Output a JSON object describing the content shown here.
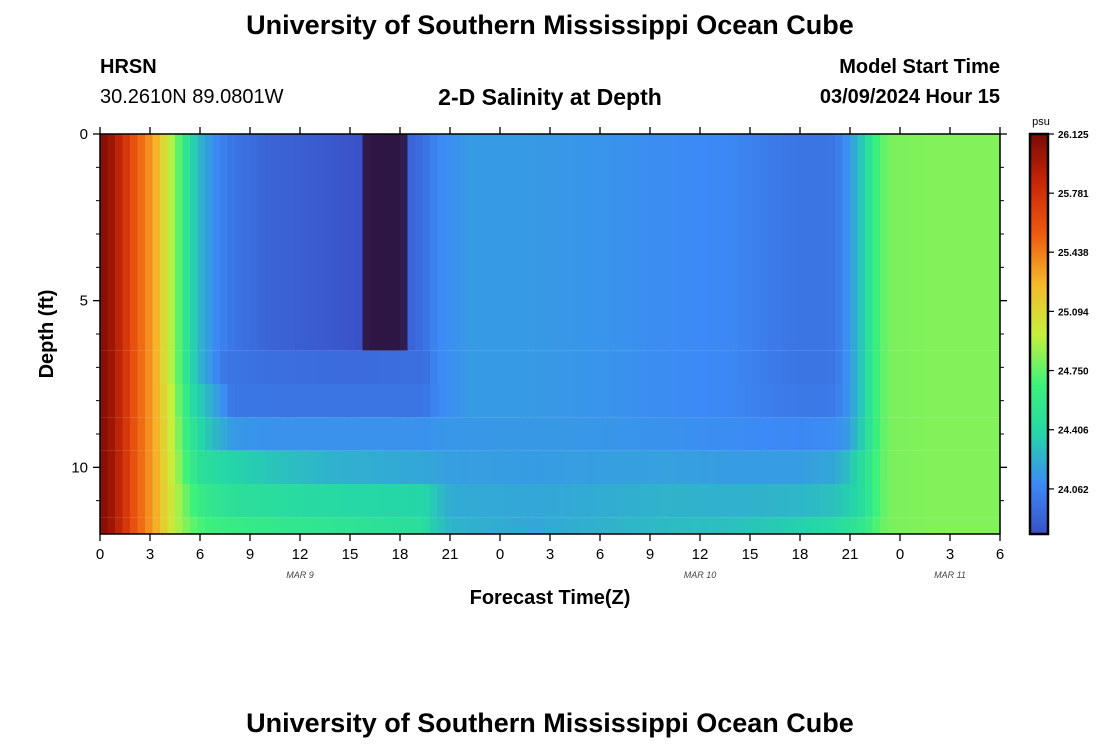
{
  "header": {
    "title": "University of Southern Mississippi Ocean Cube",
    "station": "HRSN",
    "coordinates": "30.2610N  89.0801W",
    "chart_title": "2-D Salinity at Depth",
    "model_start_label": "Model Start Time",
    "model_start_value": "03/09/2024 Hour 15"
  },
  "footer": {
    "title": "University of Southern Mississippi Ocean Cube"
  },
  "chart_data": {
    "type": "heatmap",
    "title": "2-D Salinity at Depth",
    "xlabel": "Forecast Time(Z)",
    "ylabel": "Depth (ft)",
    "x_hours_range": [
      0,
      54
    ],
    "x_tick_labels": [
      "0",
      "3",
      "6",
      "9",
      "12",
      "15",
      "18",
      "21",
      "0",
      "3",
      "6",
      "9",
      "12",
      "15",
      "18",
      "21",
      "0",
      "3",
      "6"
    ],
    "date_labels": [
      {
        "text": "MAR 9",
        "hour": 12
      },
      {
        "text": "MAR 10",
        "hour": 36
      },
      {
        "text": "MAR 11",
        "hour": 51
      }
    ],
    "y_range": [
      0,
      12
    ],
    "y_ticks": [
      0,
      5,
      10
    ],
    "y_minor_ticks": [
      1,
      2,
      3,
      4,
      6,
      7,
      8,
      9,
      11
    ],
    "colorbar": {
      "unit": "psu",
      "min": 23.8,
      "max": 26.125,
      "tick_values": [
        "26.125",
        "25.781",
        "25.438",
        "25.094",
        "24.750",
        "24.406",
        "24.062"
      ],
      "colors": [
        "#3a52c8",
        "#3c8af5",
        "#24d6a8",
        "#3ef27a",
        "#c6f03a",
        "#f5b92a",
        "#ee5a10",
        "#c82808",
        "#7a0a03"
      ]
    },
    "layers": [
      {
        "depth": [
          0,
          6.5
        ],
        "profile": [
          [
            0,
            26.1
          ],
          [
            0.5,
            26.05
          ],
          [
            1.2,
            25.85
          ],
          [
            2,
            25.6
          ],
          [
            3.3,
            25.3
          ],
          [
            4.2,
            24.95
          ],
          [
            4.8,
            24.7
          ],
          [
            5.3,
            24.45
          ],
          [
            6,
            24.25
          ],
          [
            7,
            24.08
          ],
          [
            8,
            23.98
          ],
          [
            10,
            23.9
          ],
          [
            13,
            23.85
          ],
          [
            15.6,
            23.8
          ],
          [
            16,
            23.2
          ],
          [
            18.2,
            23.2
          ],
          [
            18.5,
            23.88
          ],
          [
            19.4,
            23.95
          ],
          [
            20.2,
            24.08
          ],
          [
            22,
            24.15
          ],
          [
            26,
            24.15
          ],
          [
            30,
            24.13
          ],
          [
            34,
            24.1
          ],
          [
            38,
            24.08
          ],
          [
            40,
            24.02
          ],
          [
            42,
            23.98
          ],
          [
            43.8,
            23.98
          ],
          [
            44.5,
            24.05
          ],
          [
            45.2,
            24.2
          ],
          [
            45.8,
            24.35
          ],
          [
            46.3,
            24.55
          ],
          [
            46.8,
            24.72
          ],
          [
            47.5,
            24.8
          ],
          [
            50,
            24.82
          ],
          [
            54,
            24.82
          ]
        ]
      },
      {
        "depth": [
          6.5,
          7.5
        ],
        "profile": [
          [
            0,
            26.1
          ],
          [
            0.5,
            26.05
          ],
          [
            1.2,
            25.85
          ],
          [
            2,
            25.6
          ],
          [
            3.3,
            25.3
          ],
          [
            4.2,
            24.95
          ],
          [
            4.8,
            24.7
          ],
          [
            5.3,
            24.45
          ],
          [
            6,
            24.25
          ],
          [
            6.8,
            24.1
          ],
          [
            7.5,
            23.99
          ],
          [
            10,
            23.95
          ],
          [
            15,
            23.93
          ],
          [
            19.5,
            23.95
          ],
          [
            20.2,
            24.08
          ],
          [
            22,
            24.15
          ],
          [
            26,
            24.15
          ],
          [
            30,
            24.13
          ],
          [
            34,
            24.1
          ],
          [
            38,
            24.08
          ],
          [
            40,
            24.02
          ],
          [
            42,
            23.98
          ],
          [
            43.8,
            23.98
          ],
          [
            44.5,
            24.05
          ],
          [
            45.2,
            24.2
          ],
          [
            45.8,
            24.35
          ],
          [
            46.3,
            24.55
          ],
          [
            46.8,
            24.72
          ],
          [
            47.5,
            24.8
          ],
          [
            50,
            24.82
          ],
          [
            54,
            24.82
          ]
        ]
      },
      {
        "depth": [
          7.5,
          8.5
        ],
        "profile": [
          [
            0,
            26.1
          ],
          [
            0.5,
            26.05
          ],
          [
            1.2,
            25.85
          ],
          [
            2,
            25.6
          ],
          [
            3.3,
            25.3
          ],
          [
            4.3,
            24.95
          ],
          [
            5,
            24.65
          ],
          [
            5.6,
            24.42
          ],
          [
            6.5,
            24.25
          ],
          [
            7.3,
            24.12
          ],
          [
            8,
            23.99
          ],
          [
            12,
            23.98
          ],
          [
            19.5,
            23.98
          ],
          [
            20.2,
            24.08
          ],
          [
            22,
            24.15
          ],
          [
            26,
            24.15
          ],
          [
            30,
            24.13
          ],
          [
            34,
            24.1
          ],
          [
            38,
            24.08
          ],
          [
            40,
            24.03
          ],
          [
            42,
            24.0
          ],
          [
            43.8,
            24.0
          ],
          [
            44.5,
            24.06
          ],
          [
            45.2,
            24.2
          ],
          [
            45.8,
            24.35
          ],
          [
            46.3,
            24.55
          ],
          [
            46.8,
            24.72
          ],
          [
            47.5,
            24.8
          ],
          [
            50,
            24.82
          ],
          [
            54,
            24.82
          ]
        ]
      },
      {
        "depth": [
          8.5,
          9.5
        ],
        "profile": [
          [
            0,
            26.1
          ],
          [
            0.5,
            26.05
          ],
          [
            1.2,
            25.85
          ],
          [
            2,
            25.6
          ],
          [
            3.3,
            25.3
          ],
          [
            4.5,
            24.9
          ],
          [
            5.2,
            24.6
          ],
          [
            6,
            24.4
          ],
          [
            7,
            24.25
          ],
          [
            8,
            24.15
          ],
          [
            10,
            24.12
          ],
          [
            14,
            24.12
          ],
          [
            19.5,
            24.12
          ],
          [
            21,
            24.14
          ],
          [
            26,
            24.15
          ],
          [
            30,
            24.14
          ],
          [
            34,
            24.12
          ],
          [
            38,
            24.1
          ],
          [
            42,
            24.08
          ],
          [
            44,
            24.1
          ],
          [
            44.8,
            24.15
          ],
          [
            45.3,
            24.25
          ],
          [
            45.8,
            24.38
          ],
          [
            46.3,
            24.55
          ],
          [
            46.8,
            24.72
          ],
          [
            47.5,
            24.8
          ],
          [
            50,
            24.82
          ],
          [
            54,
            24.82
          ]
        ]
      },
      {
        "depth": [
          9.5,
          10.5
        ],
        "profile": [
          [
            0,
            26.1
          ],
          [
            0.5,
            26.05
          ],
          [
            1.2,
            25.85
          ],
          [
            2,
            25.6
          ],
          [
            3.3,
            25.3
          ],
          [
            4.5,
            24.92
          ],
          [
            5.3,
            24.62
          ],
          [
            6,
            24.48
          ],
          [
            7,
            24.42
          ],
          [
            8,
            24.38
          ],
          [
            10,
            24.32
          ],
          [
            12,
            24.28
          ],
          [
            14,
            24.24
          ],
          [
            17,
            24.22
          ],
          [
            19.5,
            24.2
          ],
          [
            21,
            24.17
          ],
          [
            26,
            24.16
          ],
          [
            30,
            24.17
          ],
          [
            34,
            24.18
          ],
          [
            38,
            24.16
          ],
          [
            42,
            24.16
          ],
          [
            44,
            24.2
          ],
          [
            44.8,
            24.28
          ],
          [
            45.5,
            24.4
          ],
          [
            46,
            24.52
          ],
          [
            46.5,
            24.65
          ],
          [
            47,
            24.75
          ],
          [
            47.5,
            24.8
          ],
          [
            50,
            24.82
          ],
          [
            54,
            24.82
          ]
        ]
      },
      {
        "depth": [
          10.5,
          11.5
        ],
        "profile": [
          [
            0,
            26.1
          ],
          [
            0.5,
            26.05
          ],
          [
            1.2,
            25.85
          ],
          [
            2,
            25.6
          ],
          [
            3.3,
            25.3
          ],
          [
            4.6,
            24.92
          ],
          [
            5.4,
            24.7
          ],
          [
            6,
            24.6
          ],
          [
            7,
            24.52
          ],
          [
            8,
            24.48
          ],
          [
            10,
            24.45
          ],
          [
            13,
            24.42
          ],
          [
            16,
            24.4
          ],
          [
            19.5,
            24.38
          ],
          [
            21,
            24.22
          ],
          [
            26,
            24.2
          ],
          [
            30,
            24.22
          ],
          [
            34,
            24.25
          ],
          [
            38,
            24.24
          ],
          [
            42,
            24.26
          ],
          [
            44,
            24.3
          ],
          [
            45,
            24.36
          ],
          [
            45.8,
            24.45
          ],
          [
            46.3,
            24.58
          ],
          [
            46.8,
            24.72
          ],
          [
            47.5,
            24.8
          ],
          [
            50,
            24.82
          ],
          [
            54,
            24.82
          ]
        ]
      },
      {
        "depth": [
          11.5,
          12
        ],
        "profile": [
          [
            0,
            26.1
          ],
          [
            0.5,
            26.05
          ],
          [
            1.2,
            25.85
          ],
          [
            2,
            25.6
          ],
          [
            3.3,
            25.3
          ],
          [
            4.6,
            24.92
          ],
          [
            5.5,
            24.75
          ],
          [
            6.5,
            24.65
          ],
          [
            8,
            24.6
          ],
          [
            11,
            24.55
          ],
          [
            14,
            24.52
          ],
          [
            17,
            24.48
          ],
          [
            19.3,
            24.46
          ],
          [
            20,
            24.35
          ],
          [
            21,
            24.25
          ],
          [
            26,
            24.2
          ],
          [
            30,
            24.24
          ],
          [
            34,
            24.28
          ],
          [
            38,
            24.3
          ],
          [
            42,
            24.36
          ],
          [
            44,
            24.42
          ],
          [
            45,
            24.48
          ],
          [
            45.8,
            24.55
          ],
          [
            46.3,
            24.65
          ],
          [
            46.8,
            24.75
          ],
          [
            47.5,
            24.8
          ],
          [
            50,
            24.82
          ],
          [
            54,
            24.82
          ]
        ]
      }
    ]
  }
}
